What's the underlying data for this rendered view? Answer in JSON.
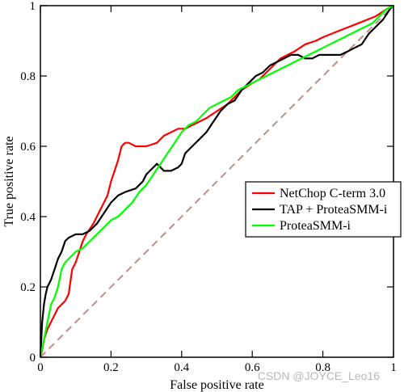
{
  "chart_data": {
    "type": "line",
    "title": "",
    "xlabel": "False positive rate",
    "ylabel": "True positive rate",
    "xlim": [
      0,
      1
    ],
    "ylim": [
      0,
      1
    ],
    "x_ticks": [
      "0",
      "0.2",
      "0.4",
      "0.6",
      "0.8",
      "1"
    ],
    "y_ticks": [
      "0",
      "0.2",
      "0.4",
      "0.6",
      "0.8",
      "1"
    ],
    "grid": false,
    "legend_position": "center-right",
    "reference_line": {
      "x": [
        0,
        1
      ],
      "y": [
        0,
        1
      ],
      "color": "#bc8f8f",
      "style": "dashed"
    },
    "series": [
      {
        "name": "NetChop C-term 3.0",
        "color": "#ff0000",
        "x": [
          0,
          0.005,
          0.01,
          0.02,
          0.03,
          0.04,
          0.05,
          0.06,
          0.07,
          0.08,
          0.09,
          0.1,
          0.11,
          0.12,
          0.13,
          0.15,
          0.17,
          0.19,
          0.2,
          0.21,
          0.22,
          0.23,
          0.24,
          0.25,
          0.27,
          0.3,
          0.33,
          0.34,
          0.35,
          0.37,
          0.39,
          0.41,
          0.43,
          0.45,
          0.47,
          0.5,
          0.53,
          0.55,
          0.57,
          0.6,
          0.62,
          0.64,
          0.66,
          0.68,
          0.7,
          0.72,
          0.75,
          0.78,
          0.8,
          0.85,
          0.9,
          0.95,
          0.98,
          1
        ],
        "y": [
          0,
          0.02,
          0.05,
          0.08,
          0.1,
          0.12,
          0.14,
          0.15,
          0.16,
          0.18,
          0.25,
          0.27,
          0.3,
          0.33,
          0.35,
          0.38,
          0.42,
          0.46,
          0.5,
          0.53,
          0.56,
          0.6,
          0.61,
          0.61,
          0.6,
          0.6,
          0.61,
          0.62,
          0.63,
          0.64,
          0.65,
          0.65,
          0.66,
          0.67,
          0.68,
          0.7,
          0.72,
          0.74,
          0.76,
          0.78,
          0.79,
          0.81,
          0.83,
          0.85,
          0.86,
          0.87,
          0.89,
          0.9,
          0.91,
          0.93,
          0.95,
          0.97,
          0.99,
          1
        ]
      },
      {
        "name": "TAP + ProteaSMM-i",
        "color": "#000000",
        "x": [
          0,
          0.005,
          0.01,
          0.015,
          0.02,
          0.03,
          0.04,
          0.05,
          0.06,
          0.07,
          0.08,
          0.1,
          0.12,
          0.14,
          0.16,
          0.18,
          0.2,
          0.22,
          0.24,
          0.27,
          0.29,
          0.3,
          0.31,
          0.33,
          0.35,
          0.37,
          0.39,
          0.4,
          0.41,
          0.43,
          0.45,
          0.47,
          0.49,
          0.51,
          0.53,
          0.55,
          0.57,
          0.59,
          0.61,
          0.63,
          0.65,
          0.67,
          0.69,
          0.71,
          0.73,
          0.75,
          0.77,
          0.79,
          0.81,
          0.83,
          0.85,
          0.87,
          0.89,
          0.91,
          0.93,
          0.95,
          0.97,
          0.99,
          1
        ],
        "y": [
          0,
          0.1,
          0.15,
          0.18,
          0.2,
          0.22,
          0.25,
          0.28,
          0.3,
          0.33,
          0.34,
          0.35,
          0.35,
          0.36,
          0.38,
          0.41,
          0.44,
          0.46,
          0.47,
          0.48,
          0.5,
          0.52,
          0.53,
          0.55,
          0.53,
          0.53,
          0.54,
          0.55,
          0.58,
          0.6,
          0.62,
          0.64,
          0.67,
          0.7,
          0.72,
          0.73,
          0.76,
          0.78,
          0.8,
          0.81,
          0.83,
          0.84,
          0.85,
          0.86,
          0.86,
          0.85,
          0.85,
          0.86,
          0.86,
          0.86,
          0.86,
          0.87,
          0.88,
          0.89,
          0.92,
          0.94,
          0.96,
          0.99,
          1
        ]
      },
      {
        "name": "ProteaSMM-i",
        "color": "#00ff00",
        "x": [
          0,
          0.01,
          0.02,
          0.03,
          0.04,
          0.05,
          0.06,
          0.07,
          0.08,
          0.09,
          0.1,
          0.12,
          0.14,
          0.16,
          0.18,
          0.2,
          0.22,
          0.24,
          0.26,
          0.28,
          0.3,
          0.32,
          0.34,
          0.36,
          0.38,
          0.4,
          0.42,
          0.44,
          0.46,
          0.48,
          0.5,
          0.52,
          0.54,
          0.56,
          0.58,
          0.6,
          0.62,
          0.64,
          0.66,
          0.68,
          0.7,
          0.72,
          0.74,
          0.76,
          0.78,
          0.8,
          0.82,
          0.84,
          0.86,
          0.88,
          0.9,
          0.92,
          0.94,
          0.96,
          0.98,
          1
        ],
        "y": [
          0,
          0.05,
          0.1,
          0.15,
          0.17,
          0.2,
          0.25,
          0.27,
          0.28,
          0.29,
          0.3,
          0.31,
          0.33,
          0.35,
          0.37,
          0.39,
          0.4,
          0.42,
          0.44,
          0.47,
          0.49,
          0.52,
          0.55,
          0.58,
          0.61,
          0.64,
          0.66,
          0.67,
          0.69,
          0.71,
          0.72,
          0.73,
          0.74,
          0.76,
          0.77,
          0.78,
          0.79,
          0.8,
          0.81,
          0.82,
          0.83,
          0.84,
          0.85,
          0.86,
          0.87,
          0.88,
          0.89,
          0.9,
          0.91,
          0.92,
          0.93,
          0.94,
          0.95,
          0.97,
          0.99,
          1
        ]
      }
    ]
  },
  "watermark": "CSDN @JOYCE_Leo16"
}
